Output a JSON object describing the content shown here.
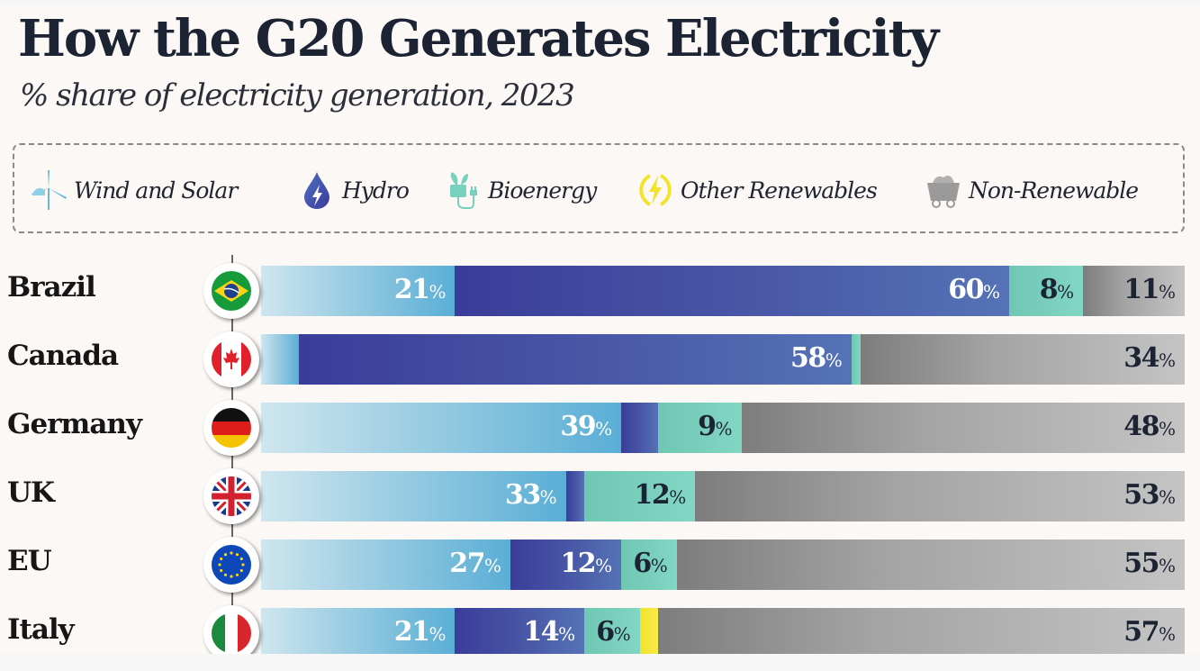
{
  "title": "How the G20 Generates Electricity",
  "subtitle": "% share of electricity generation, 2023",
  "legend": [
    {
      "key": "wind_solar",
      "label": "Wind and Solar",
      "icon": "wind-turbine-icon",
      "color": "#5aaed6"
    },
    {
      "key": "hydro",
      "label": "Hydro",
      "icon": "water-drop-bolt-icon",
      "color": "#3d3f9a"
    },
    {
      "key": "bioenergy",
      "label": "Bioenergy",
      "icon": "plant-plug-icon",
      "color": "#78d1bd"
    },
    {
      "key": "other",
      "label": "Other Renewables",
      "icon": "lightning-cycle-icon",
      "color": "#f2e32c"
    },
    {
      "key": "nonren",
      "label": "Non-Renewable",
      "icon": "mine-cart-icon",
      "color": "#8e8e8e"
    }
  ],
  "chart_data": {
    "type": "bar",
    "orientation": "horizontal",
    "stacked": true,
    "title": "How the G20 Generates Electricity",
    "subtitle": "% share of electricity generation, 2023",
    "xlabel": "",
    "ylabel": "",
    "xlim": [
      0,
      100
    ],
    "unit": "%",
    "categories": [
      "Brazil",
      "Canada",
      "Germany",
      "UK",
      "EU",
      "Italy"
    ],
    "flags": [
      "brazil-flag",
      "canada-flag",
      "germany-flag",
      "uk-flag",
      "eu-flag",
      "italy-flag"
    ],
    "series": [
      {
        "name": "Wind and Solar",
        "values": [
          21,
          4,
          39,
          33,
          27,
          21
        ],
        "labels": [
          "21",
          null,
          "39",
          "33",
          "27",
          "21"
        ]
      },
      {
        "name": "Hydro",
        "values": [
          60,
          58,
          4,
          2,
          12,
          14
        ],
        "labels": [
          "60",
          "58",
          null,
          null,
          "12",
          "14"
        ]
      },
      {
        "name": "Bioenergy",
        "values": [
          8,
          1,
          9,
          12,
          6,
          6
        ],
        "labels": [
          "8",
          null,
          "9",
          "12",
          "6",
          "6"
        ]
      },
      {
        "name": "Other Renewables",
        "values": [
          0,
          0,
          0,
          0,
          0,
          2
        ],
        "labels": [
          null,
          null,
          null,
          null,
          null,
          null
        ]
      },
      {
        "name": "Non-Renewable",
        "values": [
          11,
          34,
          48,
          53,
          55,
          57
        ],
        "labels": [
          "11",
          "34",
          "48",
          "53",
          "55",
          "57"
        ]
      }
    ]
  }
}
